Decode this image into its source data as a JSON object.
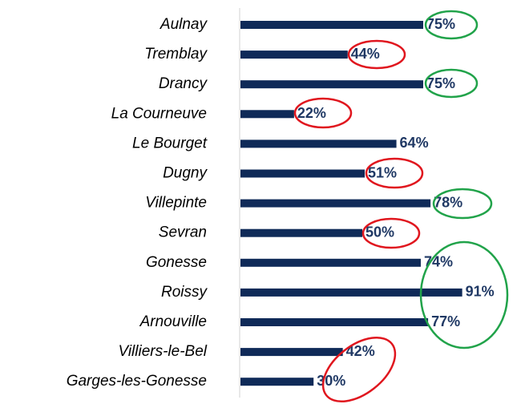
{
  "chart_data": {
    "type": "hbar",
    "categories": [
      "Aulnay",
      "Tremblay",
      "Drancy",
      "La Courneuve",
      "Le Bourget",
      "Dugny",
      "Villepinte",
      "Sevran",
      "Gonesse",
      "Roissy",
      "Arnouville",
      "Villiers-le-Bel",
      "Garges-les-Gonesse"
    ],
    "values": [
      75,
      44,
      75,
      22,
      64,
      51,
      78,
      50,
      74,
      91,
      77,
      42,
      30
    ],
    "value_labels": [
      "75%",
      "44%",
      "75%",
      "22%",
      "64%",
      "51%",
      "78%",
      "50%",
      "74%",
      "91%",
      "77%",
      "42%",
      "30%"
    ],
    "color": "#0f2a58",
    "xlim": [
      0,
      100
    ]
  }
}
